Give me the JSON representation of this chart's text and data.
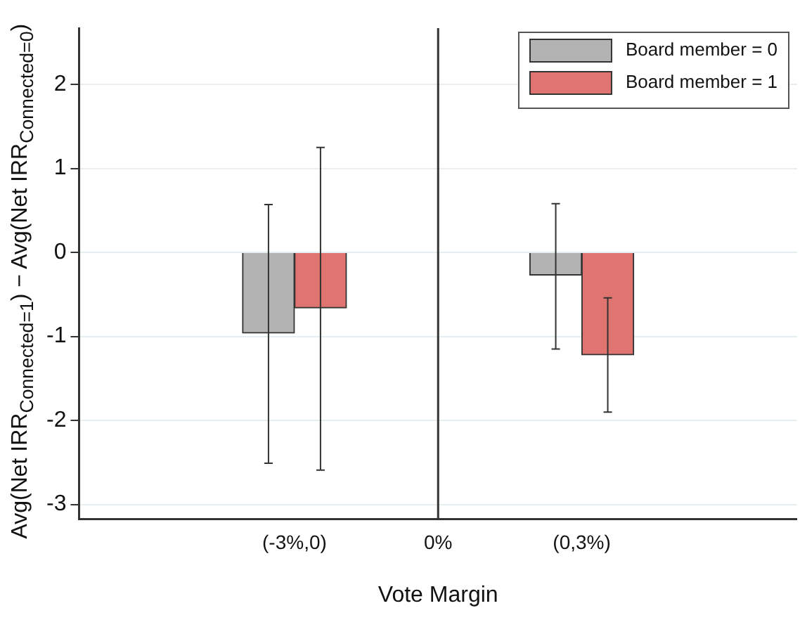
{
  "chart_data": {
    "type": "bar",
    "xlabel": "Vote Margin",
    "ylabel": "Avg(Net IRR$_{Connected=1}$) − Avg(Net IRR$_{Connected=0}$)",
    "categories": [
      null,
      "(-3%,0)",
      "0%",
      "(0,3%)",
      null
    ],
    "series": [
      {
        "name": "Board member = 0",
        "color": "#b3b3b3",
        "values": [
          null,
          -0.96,
          null,
          -0.27,
          null
        ],
        "errors": [
          null,
          [
            -2.51,
            0.57
          ],
          null,
          [
            -1.15,
            0.58
          ],
          null
        ]
      },
      {
        "name": "Board member = 1",
        "color": "#e07470",
        "values": [
          null,
          -0.66,
          null,
          -1.22,
          null
        ],
        "errors": [
          null,
          [
            -2.59,
            1.25
          ],
          null,
          [
            -1.9,
            -0.54
          ],
          null
        ]
      }
    ],
    "ylim": [
      -3.17,
      2.67
    ],
    "yticks": [
      -3,
      -2,
      -1,
      0,
      1,
      2
    ],
    "grid": "y",
    "legend": "top right",
    "ref_lines": [
      {
        "axis": "x",
        "value": "0%"
      }
    ]
  }
}
